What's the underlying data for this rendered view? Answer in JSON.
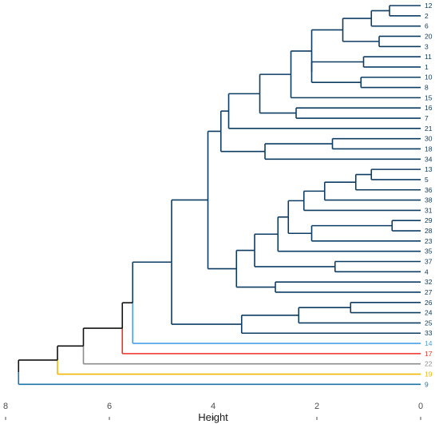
{
  "chart_data": {
    "type": "dendrogram",
    "orientation": "horizontal",
    "xlabel": "Height",
    "xlim": [
      8,
      0
    ],
    "x_ticks": [
      8,
      6,
      4,
      2,
      0
    ],
    "grid": false,
    "legend": "none",
    "colors": {
      "main": "#0d3c63",
      "root": "#111111",
      "leaf_14": "#4d9ee5",
      "leaf_17": "#ee3124",
      "leaf_22": "#8c8c8c",
      "leaf_19": "#f2b701",
      "leaf_9": "#1b74a4"
    },
    "leaf_order": [
      "12",
      "2",
      "6",
      "20",
      "3",
      "11",
      "1",
      "10",
      "8",
      "15",
      "16",
      "7",
      "21",
      "30",
      "18",
      "34",
      "13",
      "5",
      "36",
      "38",
      "31",
      "29",
      "28",
      "23",
      "35",
      "37",
      "4",
      "32",
      "27",
      "26",
      "24",
      "25",
      "33",
      "14",
      "17",
      "22",
      "19",
      "9"
    ],
    "leaf_colors": {
      "14": "#4d9ee5",
      "17": "#ee3124",
      "22": "#8c8c8c",
      "19": "#f2b701",
      "9": "#1b74a4"
    },
    "merges": [
      {
        "id": "A",
        "height": 0.6,
        "children": [
          "12",
          "2"
        ]
      },
      {
        "id": "B",
        "height": 0.95,
        "children": [
          "A",
          "6"
        ]
      },
      {
        "id": "C",
        "height": 0.8,
        "children": [
          "20",
          "3"
        ]
      },
      {
        "id": "D",
        "height": 1.5,
        "children": [
          "B",
          "C"
        ]
      },
      {
        "id": "E",
        "height": 1.1,
        "children": [
          "11",
          "1"
        ]
      },
      {
        "id": "F",
        "height": 1.15,
        "children": [
          "10",
          "8"
        ]
      },
      {
        "id": "G",
        "height": 2.1,
        "children": [
          "E",
          "F"
        ]
      },
      {
        "id": "H",
        "height": 2.1,
        "children": [
          "D",
          "G"
        ]
      },
      {
        "id": "I",
        "height": 2.5,
        "children": [
          "H",
          "15"
        ]
      },
      {
        "id": "J",
        "height": 2.4,
        "children": [
          "16",
          "7"
        ]
      },
      {
        "id": "K",
        "height": 3.1,
        "children": [
          "I",
          "J"
        ]
      },
      {
        "id": "L",
        "height": 3.7,
        "children": [
          "K",
          "21"
        ]
      },
      {
        "id": "M",
        "height": 1.7,
        "children": [
          "30",
          "18"
        ]
      },
      {
        "id": "N",
        "height": 3.0,
        "children": [
          "M",
          "34"
        ]
      },
      {
        "id": "O",
        "height": 3.85,
        "children": [
          "L",
          "N"
        ]
      },
      {
        "id": "P",
        "height": 0.95,
        "children": [
          "13",
          "5"
        ]
      },
      {
        "id": "Q",
        "height": 1.25,
        "children": [
          "P",
          "36"
        ]
      },
      {
        "id": "R",
        "height": 1.85,
        "children": [
          "Q",
          "38"
        ]
      },
      {
        "id": "S",
        "height": 2.25,
        "children": [
          "R",
          "31"
        ]
      },
      {
        "id": "T",
        "height": 0.55,
        "children": [
          "29",
          "28"
        ]
      },
      {
        "id": "U",
        "height": 2.1,
        "children": [
          "T",
          "23"
        ]
      },
      {
        "id": "V",
        "height": 2.55,
        "children": [
          "S",
          "U"
        ]
      },
      {
        "id": "W",
        "height": 2.75,
        "children": [
          "V",
          "35"
        ]
      },
      {
        "id": "X",
        "height": 1.65,
        "children": [
          "37",
          "4"
        ]
      },
      {
        "id": "Y",
        "height": 3.2,
        "children": [
          "W",
          "X"
        ]
      },
      {
        "id": "Z",
        "height": 2.8,
        "children": [
          "32",
          "27"
        ]
      },
      {
        "id": "AA",
        "height": 3.55,
        "children": [
          "Y",
          "Z"
        ]
      },
      {
        "id": "AB",
        "height": 4.1,
        "children": [
          "O",
          "AA"
        ]
      },
      {
        "id": "AC",
        "height": 1.35,
        "children": [
          "26",
          "24"
        ]
      },
      {
        "id": "AD",
        "height": 2.35,
        "children": [
          "AC",
          "25"
        ]
      },
      {
        "id": "AE",
        "height": 3.45,
        "children": [
          "AD",
          "33"
        ]
      },
      {
        "id": "AF",
        "height": 4.8,
        "children": [
          "AB",
          "AE"
        ]
      },
      {
        "id": "AG",
        "height": 5.55,
        "children": [
          "AF",
          "14"
        ]
      },
      {
        "id": "AH",
        "height": 5.75,
        "children": [
          "AG",
          "17"
        ]
      },
      {
        "id": "AI",
        "height": 6.5,
        "children": [
          "AH",
          "22"
        ]
      },
      {
        "id": "AJ",
        "height": 7.0,
        "children": [
          "AI",
          "19"
        ]
      },
      {
        "id": "AK",
        "height": 7.75,
        "children": [
          "AJ",
          "9"
        ]
      }
    ]
  }
}
